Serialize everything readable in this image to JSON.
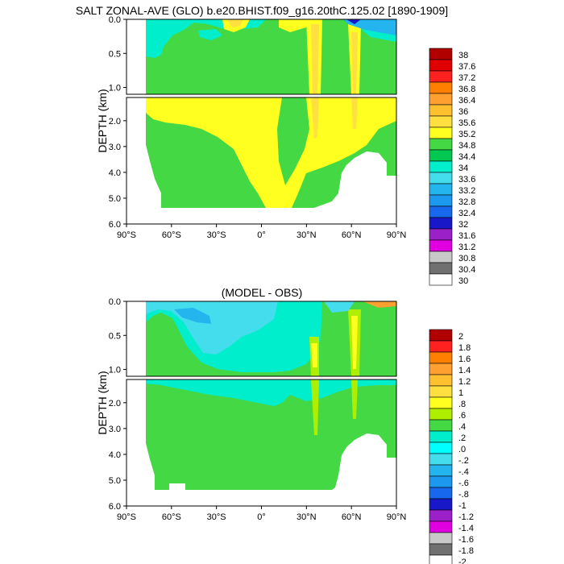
{
  "chart_data": [
    {
      "type": "heatmap",
      "title": "SALT ZONAL-AVE (GLO) b.e20.BHIST.f09_g16.20thC.125.02 [1890-1909]",
      "xlabel": "",
      "ylabel": "DEPTH (km)",
      "xticks": [
        "90°S",
        "60°S",
        "30°S",
        "0°",
        "30°N",
        "60°N",
        "90°N"
      ],
      "xlim": [
        -90,
        90
      ],
      "yticks_upper": [
        "0.0",
        "0.5",
        "1.0"
      ],
      "yticks_lower": [
        "2.0",
        "3.0",
        "4.0",
        "5.0",
        "6.0"
      ],
      "ylim_upper_km": [
        0,
        1.1
      ],
      "ylim_lower_km": [
        1.1,
        6.0
      ],
      "colorbar_labels": [
        "38",
        "37.6",
        "37.2",
        "36.8",
        "36.4",
        "36",
        "35.6",
        "35.2",
        "34.8",
        "34.4",
        "34",
        "33.6",
        "33.2",
        "32.8",
        "32.4",
        "32",
        "31.6",
        "31.2",
        "30.8",
        "30.4",
        "30"
      ],
      "regions": [
        {
          "label": "34.4-34.8",
          "value": 34.6
        },
        {
          "label": "34.8-35.2",
          "value": 35.0
        },
        {
          "label": "35.2-35.6",
          "value": 35.4
        },
        {
          "label": "33.6-34.0",
          "value": 33.8
        }
      ]
    },
    {
      "type": "heatmap",
      "title": "(MODEL - OBS)",
      "xlabel": "",
      "ylabel": "DEPTH (km)",
      "xticks": [
        "90°S",
        "60°S",
        "30°S",
        "0°",
        "30°N",
        "60°N",
        "90°N"
      ],
      "xlim": [
        -90,
        90
      ],
      "yticks_upper": [
        "0.0",
        "0.5",
        "1.0"
      ],
      "yticks_lower": [
        "2.0",
        "3.0",
        "4.0",
        "5.0",
        "6.0"
      ],
      "ylim_upper_km": [
        0,
        1.1
      ],
      "ylim_lower_km": [
        1.1,
        6.0
      ],
      "colorbar_labels": [
        "2",
        "1.8",
        "1.6",
        "1.4",
        "1.2",
        "1",
        ".8",
        ".6",
        ".4",
        ".2",
        ".0",
        "-.2",
        "-.4",
        "-.6",
        "-.8",
        "-1",
        "-1.2",
        "-1.4",
        "-1.6",
        "-1.8",
        "-2"
      ],
      "regions": [
        {
          "label": "0.0-0.2",
          "value": 0.1
        },
        {
          "label": "-0.2-0.0",
          "value": -0.1
        },
        {
          "label": "-0.4--0.2",
          "value": -0.3
        },
        {
          "label": "0.4-0.6",
          "value": 0.5
        }
      ]
    }
  ],
  "colors": {
    "salt_bar": [
      "#ffffff",
      "#707070",
      "#c8c8c8",
      "#e000e0",
      "#9c20c8",
      "#1818c8",
      "#1868ee",
      "#1c98ee",
      "#24b4ee",
      "#44ddee",
      "#00eecc",
      "#00c850",
      "#44d844",
      "#ffff20",
      "#ffe040",
      "#ffc030",
      "#ffa030",
      "#ff8000",
      "#ff2020",
      "#e00000",
      "#b00000"
    ],
    "diff_bar": [
      "#ffffff",
      "#707070",
      "#c8c8c8",
      "#e000e0",
      "#9c20c8",
      "#1818c8",
      "#1868ee",
      "#1c98ee",
      "#24b4ee",
      "#44ddee",
      "#00ffff",
      "#00eecc",
      "#44d844",
      "#b0ee00",
      "#ffff20",
      "#ffe040",
      "#ffc030",
      "#ffa030",
      "#ff8000",
      "#ff2020",
      "#b00000"
    ]
  }
}
